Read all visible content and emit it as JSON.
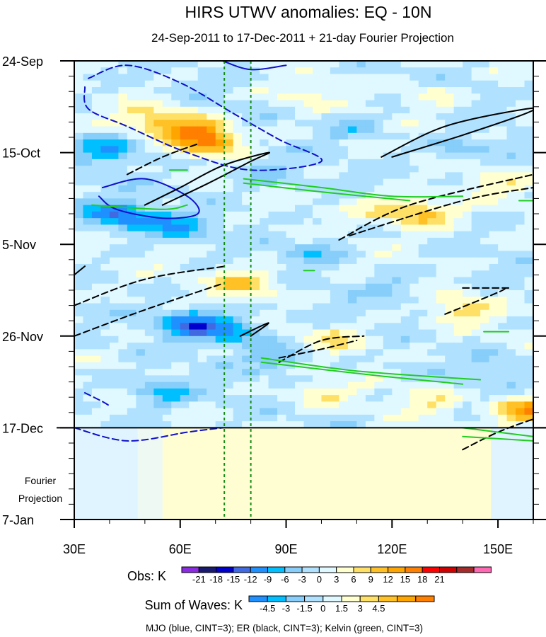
{
  "chart_data": {
    "type": "heatmap",
    "title": "HIRS UTWV anomalies: EQ - 10N",
    "subtitle": "24-Sep-2011 to 17-Dec-2011 + 21-day Fourier Projection",
    "xlabel": "",
    "ylabel": "",
    "x_range": [
      30,
      160
    ],
    "x_ticks": [
      {
        "value": 30,
        "label": "30E"
      },
      {
        "value": 60,
        "label": "60E"
      },
      {
        "value": 90,
        "label": "90E"
      },
      {
        "value": 120,
        "label": "120E"
      },
      {
        "value": 150,
        "label": "150E"
      }
    ],
    "y_range_days": [
      0,
      105
    ],
    "y_ticks": [
      {
        "day": 0,
        "label": "24-Sep"
      },
      {
        "day": 21,
        "label": "15-Oct"
      },
      {
        "day": 42,
        "label": "5-Nov"
      },
      {
        "day": 63,
        "label": "26-Nov"
      },
      {
        "day": 84,
        "label": "17-Dec"
      },
      {
        "day": 105,
        "label": "7-Jan"
      }
    ],
    "projection_label_line1": "Fourier",
    "projection_label_line2": "Projection",
    "projection_start_day": 84,
    "reference_longitudes": [
      72.5,
      80
    ],
    "hotspots": [
      {
        "lon": 68,
        "day": 18,
        "value": 16
      },
      {
        "lon": 60,
        "day": 15,
        "value": 9
      },
      {
        "lon": 50,
        "day": 13,
        "value": 6
      },
      {
        "lon": 78,
        "day": 51,
        "value": 10
      },
      {
        "lon": 130,
        "day": 35,
        "value": 10
      },
      {
        "lon": 118,
        "day": 34,
        "value": 6
      },
      {
        "lon": 140,
        "day": 57,
        "value": 7
      },
      {
        "lon": 105,
        "day": 64,
        "value": 6
      },
      {
        "lon": 150,
        "day": 28,
        "value": 5
      },
      {
        "lon": 100,
        "day": 76,
        "value": 5
      },
      {
        "lon": 130,
        "day": 78,
        "value": 5
      },
      {
        "lon": 158,
        "day": 80,
        "value": 14
      },
      {
        "lon": 95,
        "day": 8,
        "value": 4
      },
      {
        "lon": 130,
        "day": 8,
        "value": 4
      },
      {
        "lon": 40,
        "day": 20,
        "value": -8
      },
      {
        "lon": 45,
        "day": 36,
        "value": -10
      },
      {
        "lon": 60,
        "day": 38,
        "value": -7
      },
      {
        "lon": 63,
        "day": 60,
        "value": -12
      },
      {
        "lon": 75,
        "day": 62,
        "value": -9
      },
      {
        "lon": 55,
        "day": 76,
        "value": -7
      },
      {
        "lon": 88,
        "day": 68,
        "value": -6
      },
      {
        "lon": 110,
        "day": 15,
        "value": -4
      },
      {
        "lon": 140,
        "day": 20,
        "value": -5
      },
      {
        "lon": 98,
        "day": 44,
        "value": -5
      },
      {
        "lon": 120,
        "day": 52,
        "value": -4
      },
      {
        "lon": 150,
        "day": 70,
        "value": -4
      },
      {
        "lon": 36,
        "day": 34,
        "value": -5
      },
      {
        "lon": 85,
        "day": 26,
        "value": -4
      }
    ],
    "waves": {
      "mjo": [
        {
          "style": "dashed",
          "points": [
            [
              34,
              4
            ],
            [
              45,
              1
            ],
            [
              60,
              5
            ],
            [
              75,
              12
            ],
            [
              88,
              18
            ],
            [
              100,
              23
            ],
            [
              80,
              25
            ],
            [
              62,
              21
            ],
            [
              45,
              15
            ],
            [
              34,
              11
            ],
            [
              33,
              6
            ]
          ]
        },
        {
          "style": "solid",
          "points": [
            [
              38,
              29
            ],
            [
              50,
              27
            ],
            [
              62,
              31
            ],
            [
              65,
              35
            ],
            [
              55,
              36
            ],
            [
              42,
              34
            ],
            [
              37,
              31
            ]
          ]
        },
        {
          "style": "solid",
          "points": [
            [
              72,
              0
            ],
            [
              80,
              2
            ],
            [
              90,
              1
            ]
          ]
        },
        {
          "style": "dashed",
          "points": [
            [
              30,
              84
            ],
            [
              45,
              87
            ],
            [
              62,
              85
            ],
            [
              72,
              84
            ]
          ]
        },
        {
          "style": "dashed",
          "points": [
            [
              33,
              76
            ],
            [
              38,
              78
            ],
            [
              40,
              79
            ]
          ]
        }
      ],
      "er": [
        {
          "style": "solid",
          "points": [
            [
              50,
              33
            ],
            [
              60,
              29
            ],
            [
              72,
              24
            ],
            [
              85,
              21
            ],
            [
              80,
              23
            ],
            [
              68,
              28
            ],
            [
              55,
              33
            ]
          ]
        },
        {
          "style": "solid",
          "points": [
            [
              117,
              22
            ],
            [
              135,
              15
            ],
            [
              158,
              11
            ],
            [
              158,
              12
            ],
            [
              140,
              17
            ],
            [
              120,
              22
            ]
          ]
        },
        {
          "style": "solid",
          "points": [
            [
              77,
              63
            ],
            [
              85,
              60
            ],
            [
              80,
              63
            ]
          ]
        },
        {
          "style": "solid",
          "points": [
            [
              30,
              49
            ],
            [
              33,
              47
            ]
          ]
        },
        {
          "style": "dashed",
          "points": [
            [
              45,
              26
            ],
            [
              55,
              22
            ],
            [
              65,
              19
            ]
          ]
        },
        {
          "style": "dashed",
          "points": [
            [
              105,
              41
            ],
            [
              125,
              33
            ],
            [
              160,
              26
            ]
          ]
        },
        {
          "style": "dashed",
          "points": [
            [
              108,
              40
            ],
            [
              140,
              32
            ],
            [
              160,
              29
            ]
          ]
        },
        {
          "style": "dashed",
          "points": [
            [
              30,
              56
            ],
            [
              50,
              50
            ],
            [
              73,
              47
            ]
          ]
        },
        {
          "style": "dashed",
          "points": [
            [
              30,
              63
            ],
            [
              50,
              57
            ],
            [
              72,
              51
            ]
          ]
        },
        {
          "style": "dashed",
          "points": [
            [
              88,
              69
            ],
            [
              100,
              64
            ],
            [
              112,
              63
            ]
          ]
        },
        {
          "style": "dashed",
          "points": [
            [
              88,
              68
            ],
            [
              100,
              66
            ],
            [
              110,
              64
            ]
          ]
        },
        {
          "style": "dashed",
          "points": [
            [
              135,
              58
            ],
            [
              150,
              53
            ],
            [
              152,
              52
            ]
          ]
        },
        {
          "style": "dashed",
          "points": [
            [
              140,
              52
            ],
            [
              153,
              52
            ]
          ]
        },
        {
          "style": "dashed",
          "points": [
            [
              140,
              89
            ],
            [
              150,
              85
            ],
            [
              160,
              82
            ]
          ]
        }
      ],
      "kelvin": [
        {
          "style": "solid",
          "points": [
            [
              78,
              27
            ],
            [
              100,
              29
            ],
            [
              120,
              31
            ],
            [
              140,
              31
            ]
          ]
        },
        {
          "style": "solid",
          "points": [
            [
              78,
              28
            ],
            [
              100,
              30
            ],
            [
              125,
              32
            ]
          ]
        },
        {
          "style": "solid",
          "points": [
            [
              35,
              33
            ],
            [
              55,
              34
            ],
            [
              62,
              33
            ]
          ]
        },
        {
          "style": "solid",
          "points": [
            [
              83,
              68
            ],
            [
              110,
              71
            ],
            [
              145,
              73
            ]
          ]
        },
        {
          "style": "solid",
          "points": [
            [
              83,
              69
            ],
            [
              115,
              72
            ],
            [
              140,
              74
            ]
          ]
        },
        {
          "style": "solid",
          "points": [
            [
              140,
              84
            ],
            [
              160,
              86
            ]
          ]
        },
        {
          "style": "solid",
          "points": [
            [
              140,
              86
            ],
            [
              160,
              87
            ]
          ]
        },
        {
          "style": "solid",
          "points": [
            [
              57,
              25
            ],
            [
              62,
              25
            ]
          ]
        },
        {
          "style": "solid",
          "points": [
            [
              95,
              48
            ],
            [
              98,
              48
            ]
          ]
        },
        {
          "style": "solid",
          "points": [
            [
              146,
              62
            ],
            [
              153,
              62
            ]
          ]
        },
        {
          "style": "solid",
          "points": [
            [
              156,
              32
            ],
            [
              160,
              32
            ]
          ]
        }
      ]
    }
  },
  "legend": {
    "obs_label": "Obs: K",
    "obs_colors": [
      "#8a2be2",
      "#191970",
      "#0000cd",
      "#4169e1",
      "#1e90ff",
      "#00bfff",
      "#87cefa",
      "#b0e2ff",
      "#e0f8ff",
      "#ffffd0",
      "#ffe066",
      "#ffc125",
      "#ffa500",
      "#ff7f00",
      "#ff0000",
      "#d00000",
      "#a52a2a",
      "#ff69b4"
    ],
    "obs_ticks": [
      "-21",
      "-18",
      "-15",
      "-12",
      "-9",
      "-6",
      "-3",
      "0",
      "3",
      "6",
      "9",
      "12",
      "15",
      "18",
      "21"
    ],
    "waves_label": "Sum of Waves: K",
    "waves_colors": [
      "#1e90ff",
      "#00bfff",
      "#87cefa",
      "#b0e2ff",
      "#e0f8ff",
      "#ffffd0",
      "#ffe066",
      "#ffc125",
      "#ffa500",
      "#ff7f00"
    ],
    "waves_ticks": [
      "-4.5",
      "-3",
      "-1.5",
      "0",
      "1.5",
      "3",
      "4.5"
    ],
    "footer": "MJO (blue, CINT=3); ER (black, CINT=3); Kelvin (green, CINT=3)"
  },
  "colors": {
    "mjo": "#1010c8",
    "er": "#000000",
    "kelvin": "#22cc22",
    "reference_line": "#148c14"
  }
}
